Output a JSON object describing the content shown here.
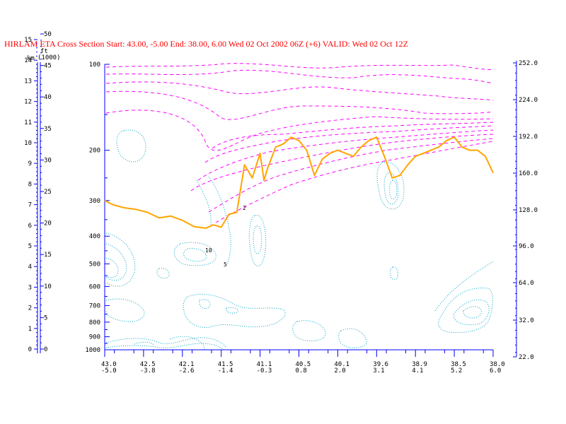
{
  "chart_data": {
    "type": "line",
    "title": "HIRLAM ETA Cross Section Start:  43.00,  -5.00 End:  38.00,   6.00 Wed 02 Oct 2002 06Z  (+6) VALID: Wed 02 Oct 12Z",
    "left_km_label": "km",
    "left_ft_label": "ft",
    "left_ft_unit": "(1000)",
    "km_ticks": [
      "0",
      "1",
      "2",
      "3",
      "4",
      "5",
      "6",
      "7",
      "8",
      "9",
      "10",
      "11",
      "12",
      "13",
      "14",
      "15"
    ],
    "ft_ticks": [
      "0",
      "5",
      "10",
      "15",
      "20",
      "25",
      "30",
      "35",
      "40",
      "45",
      "50"
    ],
    "pressure_ticks": [
      "100",
      "200",
      "300",
      "400",
      "500",
      "600",
      "700",
      "800",
      "900",
      "1000"
    ],
    "right_ticks": [
      "22.0",
      "32.0",
      "64.0",
      "96.0",
      "128.0",
      "160.0",
      "192.0",
      "224.0",
      "252.0"
    ],
    "x_ticks": [
      {
        "lat": "43.0",
        "lon": "-5.0"
      },
      {
        "lat": "42.5",
        "lon": "-3.8"
      },
      {
        "lat": "42.1",
        "lon": "-2.6"
      },
      {
        "lat": "41.5",
        "lon": "-1.4"
      },
      {
        "lat": "41.1",
        "lon": "-0.3"
      },
      {
        "lat": "40.5",
        "lon": "0.8"
      },
      {
        "lat": "40.1",
        "lon": "2.0"
      },
      {
        "lat": "39.6",
        "lon": "3.1"
      },
      {
        "lat": "38.9",
        "lon": "4.1"
      },
      {
        "lat": "38.5",
        "lon": "5.2"
      },
      {
        "lat": "38.0",
        "lon": "6.0"
      }
    ],
    "contour_labels": [
      "2",
      "10",
      "5"
    ],
    "tropopause_series": {
      "x_fraction_along_section": [
        0.0,
        0.02,
        0.05,
        0.08,
        0.11,
        0.14,
        0.17,
        0.2,
        0.23,
        0.26,
        0.28,
        0.3,
        0.32,
        0.34,
        0.36,
        0.38,
        0.4,
        0.41,
        0.42,
        0.44,
        0.46,
        0.48,
        0.5,
        0.52,
        0.54,
        0.56,
        0.58,
        0.6,
        0.62,
        0.64,
        0.66,
        0.68,
        0.7,
        0.72,
        0.74,
        0.76,
        0.78,
        0.8,
        0.82,
        0.84,
        0.86,
        0.88,
        0.9,
        0.92,
        0.94,
        0.96,
        0.98,
        1.0
      ],
      "pressure_hPa": [
        300,
        310,
        318,
        322,
        330,
        345,
        340,
        352,
        370,
        375,
        365,
        372,
        335,
        330,
        225,
        250,
        205,
        255,
        230,
        195,
        190,
        180,
        185,
        200,
        245,
        215,
        205,
        200,
        205,
        210,
        195,
        185,
        180,
        210,
        250,
        245,
        225,
        210,
        205,
        200,
        195,
        185,
        180,
        195,
        200,
        200,
        210,
        240
      ]
    },
    "colors": {
      "title": "#ff0000",
      "axis": "#0000ff",
      "tropopause": "#ffa500",
      "wind_contours": "#ff00ff",
      "turbulence_contours": "#00a0c0"
    }
  }
}
